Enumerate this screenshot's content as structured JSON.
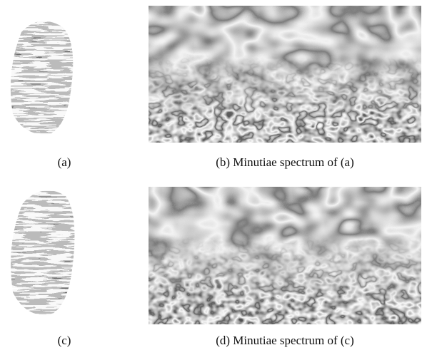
{
  "figure": {
    "panels": [
      {
        "caption": "(a)"
      },
      {
        "caption": "(b) Minutiae spectrum of (a)"
      },
      {
        "caption": "(c)"
      },
      {
        "caption": "(d) Minutiae spectrum of (c)"
      }
    ]
  }
}
